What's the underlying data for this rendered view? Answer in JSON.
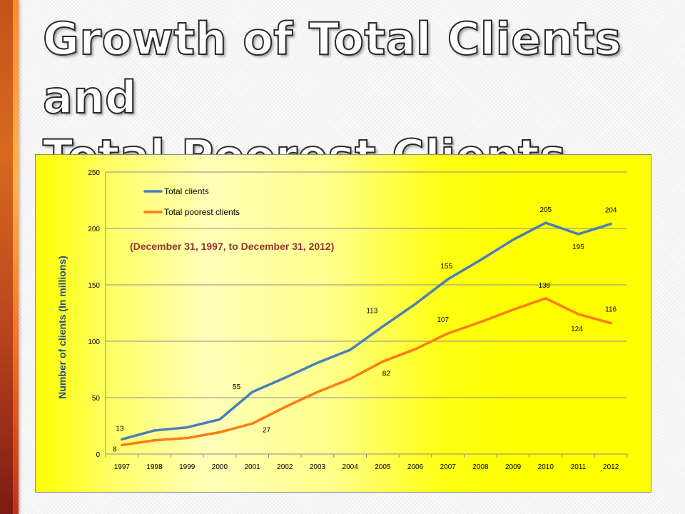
{
  "slide": {
    "title": "Growth of Total Clients and\nTotal Poorest Clients"
  },
  "colors": {
    "total_clients": "#4a7ebb",
    "total_poorest_clients": "#ff7c14",
    "chart_background": "#ffff00",
    "subtitle_text": "#943634"
  },
  "chart_data": {
    "type": "line",
    "title": "",
    "subtitle": "(December 31, 1997, to December 31, 2012)",
    "xlabel": "",
    "ylabel": "Number of clients (In millions)",
    "ylim": [
      0,
      250
    ],
    "yticks": [
      0,
      50,
      100,
      150,
      200,
      250
    ],
    "grid": true,
    "legend": "top-left",
    "x": [
      "1997",
      "1998",
      "1999",
      "2000",
      "2001",
      "2002",
      "2003",
      "2004",
      "2005",
      "2006",
      "2007",
      "2008",
      "2009",
      "2010",
      "2011",
      "2012"
    ],
    "series": [
      {
        "name": "Total clients",
        "values": [
          13,
          20.9,
          23.6,
          30.7,
          55,
          67.6,
          80.9,
          92.3,
          113,
          133,
          155,
          172,
          190,
          205,
          195,
          204
        ],
        "labels": {
          "1997": "13",
          "2001": "55",
          "2005": "113",
          "2007": "155",
          "2010": "205",
          "2011": "195",
          "2012": "204"
        }
      },
      {
        "name": "Total poorest clients",
        "values": [
          8,
          12.2,
          14.2,
          19.3,
          27,
          41.6,
          55,
          66.6,
          82,
          93,
          107,
          117,
          128,
          138,
          124,
          116
        ],
        "labels": {
          "1997": "8",
          "2001": "27",
          "2005": "82",
          "2007": "107",
          "2010": "138",
          "2011": "124",
          "2012": "116"
        }
      }
    ]
  }
}
